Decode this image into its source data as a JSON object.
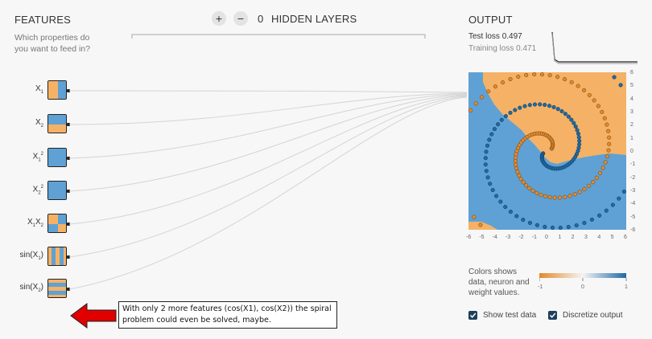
{
  "features": {
    "heading": "FEATURES",
    "description": "Which properties do you want to feed in?",
    "items": [
      {
        "label": "X",
        "sub": "1",
        "sup": "",
        "pattern": "vertical-split"
      },
      {
        "label": "X",
        "sub": "2",
        "sup": "",
        "pattern": "horizontal-split"
      },
      {
        "label": "X",
        "sub": "1",
        "sup": "2",
        "pattern": "solid-blue"
      },
      {
        "label": "X",
        "sub": "2",
        "sup": "2",
        "pattern": "solid-blue"
      },
      {
        "label": "X",
        "sub": "1",
        "sup": "",
        "label2": "X",
        "sub2": "2",
        "pattern": "checker"
      },
      {
        "label": "sin(X",
        "sub": "1",
        "sup": "",
        "suffix": ")",
        "pattern": "sin-vertical"
      },
      {
        "label": "sin(X",
        "sub": "2",
        "sup": "",
        "suffix": ")",
        "pattern": "sin-horizontal"
      }
    ]
  },
  "hidden_layers": {
    "add_icon": "plus-icon",
    "add_glyph": "+",
    "remove_icon": "minus-icon",
    "remove_glyph": "−",
    "count": "0",
    "label": "HIDDEN LAYERS"
  },
  "output": {
    "heading": "OUTPUT",
    "test_loss_label": "Test loss",
    "test_loss_value": "0.497",
    "training_loss_label": "Training loss",
    "training_loss_value": "0.471",
    "y_ticks": [
      "6",
      "5",
      "4",
      "3",
      "2",
      "1",
      "0",
      "-1",
      "-2",
      "-3",
      "-4",
      "-5",
      "-6"
    ],
    "x_ticks": [
      "-6",
      "-5",
      "-4",
      "-3",
      "-2",
      "-1",
      "0",
      "1",
      "2",
      "3",
      "4",
      "5",
      "6"
    ],
    "color_legend_text": "Colors shows data, neuron and weight values.",
    "scale_min": "-1",
    "scale_mid": "0",
    "scale_max": "1"
  },
  "controls": {
    "show_test_data": "Show test data",
    "discretize_output": "Discretize output"
  },
  "annotation": {
    "text": "With only 2 more features (cos(X1), cos(X2)) the spiral problem could even be solved, maybe."
  },
  "colors": {
    "orange": "#f5b266",
    "blue": "#5fa1d4",
    "orange_point": "#e28a2b",
    "blue_point": "#1f6aa5",
    "red_arrow": "#e00000"
  }
}
